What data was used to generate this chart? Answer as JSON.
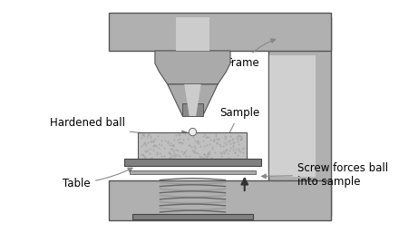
{
  "bg_color": "#ffffff",
  "frame_color": "#aaaaaa",
  "frame_dark": "#888888",
  "frame_light": "#cccccc",
  "steel_dark": "#666666",
  "steel_mid": "#999999",
  "steel_light": "#bbbbbb",
  "sample_color": "#cccccc",
  "sample_texture": "#aaaaaa",
  "spring_color": "#888888",
  "text_color": "#000000",
  "labels": {
    "frame": "Frame",
    "sample": "Sample",
    "hardened_ball": "Hardened ball",
    "table": "Table",
    "screw": "Screw forces ball\ninto sample"
  },
  "figsize": [
    4.4,
    2.57
  ],
  "dpi": 100
}
